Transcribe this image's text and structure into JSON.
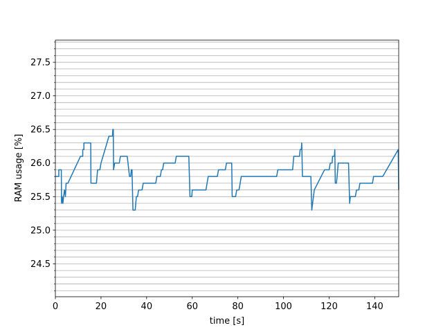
{
  "chart_data": {
    "type": "line",
    "xlabel": "time [s]",
    "ylabel": "RAM usage [%]",
    "xlim": [
      0,
      150.5
    ],
    "ylim": [
      24.01,
      27.83
    ],
    "xticks": [
      0,
      20,
      40,
      60,
      80,
      100,
      120,
      140
    ],
    "yticks": [
      {
        "value": 24.5,
        "label": "24.5"
      },
      {
        "value": 25,
        "label": "25.0"
      },
      {
        "value": 25.5,
        "label": "25.5"
      },
      {
        "value": 26,
        "label": "26.0"
      },
      {
        "value": 26.5,
        "label": "26.5"
      },
      {
        "value": 27,
        "label": "27.0"
      },
      {
        "value": 27.5,
        "label": "27.5"
      }
    ],
    "yminor": [
      24.1,
      24.2,
      24.3,
      24.4,
      24.6,
      24.7,
      24.8,
      24.9,
      25.1,
      25.2,
      25.3,
      25.4,
      25.6,
      25.7,
      25.8,
      25.9,
      26.1,
      26.2,
      26.3,
      26.4,
      26.6,
      26.7,
      26.8,
      26.9,
      27.1,
      27.2,
      27.3,
      27.4,
      27.6,
      27.7,
      27.8
    ],
    "grid": true,
    "series": [
      {
        "color": "#1f77b4",
        "x": [
          0,
          1.5,
          1.5,
          2.6,
          2.7,
          3,
          3.3,
          3.6,
          4,
          4.4,
          4.7,
          5.5,
          11,
          12,
          12,
          12.5,
          12.5,
          15.5,
          15.6,
          18,
          18.5,
          19.5,
          20,
          23.5,
          25,
          25.2,
          25.4,
          25.5,
          26,
          28,
          28.5,
          31.5,
          32.5,
          33,
          33.3,
          33.6,
          34,
          35,
          35.5,
          36,
          36.5,
          38,
          38.5,
          44,
          44.5,
          46,
          46.5,
          47,
          47.5,
          52.5,
          53,
          58.5,
          59,
          59.8,
          60,
          66,
          66.5,
          67,
          71,
          71.5,
          74.5,
          75,
          77.3,
          77.5,
          79,
          79.5,
          80.5,
          81,
          81.5,
          97,
          97.5,
          104,
          104.5,
          107,
          107.3,
          107.8,
          108,
          108.3,
          112,
          112.4,
          113.5,
          118,
          120,
          120.5,
          121.3,
          121.5,
          122.3,
          122.5,
          122.7,
          123.2,
          123.5,
          124,
          128.5,
          129,
          129.3,
          131.5,
          132,
          133,
          133.5,
          139,
          139.5,
          143.5,
          150.3,
          150.5
        ],
        "values": [
          25.8,
          25.8,
          25.9,
          25.9,
          25.4,
          25.5,
          25.4,
          25.5,
          25.6,
          25.5,
          25.7,
          25.7,
          26.1,
          26.1,
          26.2,
          26.2,
          26.3,
          26.3,
          25.7,
          25.7,
          25.9,
          25.9,
          26.0,
          26.4,
          26.4,
          26.5,
          26.5,
          25.9,
          26.0,
          26.0,
          26.1,
          26.1,
          25.8,
          25.8,
          25.9,
          25.9,
          25.3,
          25.3,
          25.5,
          25.5,
          25.6,
          25.6,
          25.7,
          25.7,
          25.8,
          25.8,
          25.9,
          25.9,
          26.0,
          26.0,
          26.1,
          26.1,
          25.5,
          25.5,
          25.6,
          25.6,
          25.7,
          25.8,
          25.8,
          25.9,
          25.9,
          26.0,
          26.0,
          25.5,
          25.5,
          25.6,
          25.6,
          25.7,
          25.8,
          25.8,
          25.9,
          25.9,
          26.1,
          26.1,
          26.2,
          26.2,
          26.3,
          25.8,
          25.8,
          25.3,
          25.6,
          25.9,
          25.9,
          26.0,
          26.0,
          26.1,
          26.1,
          26.2,
          25.7,
          25.7,
          25.8,
          26.0,
          26.0,
          25.4,
          25.5,
          25.5,
          25.6,
          25.6,
          25.7,
          25.7,
          25.8,
          25.8,
          26.2,
          25.6
        ]
      }
    ]
  }
}
